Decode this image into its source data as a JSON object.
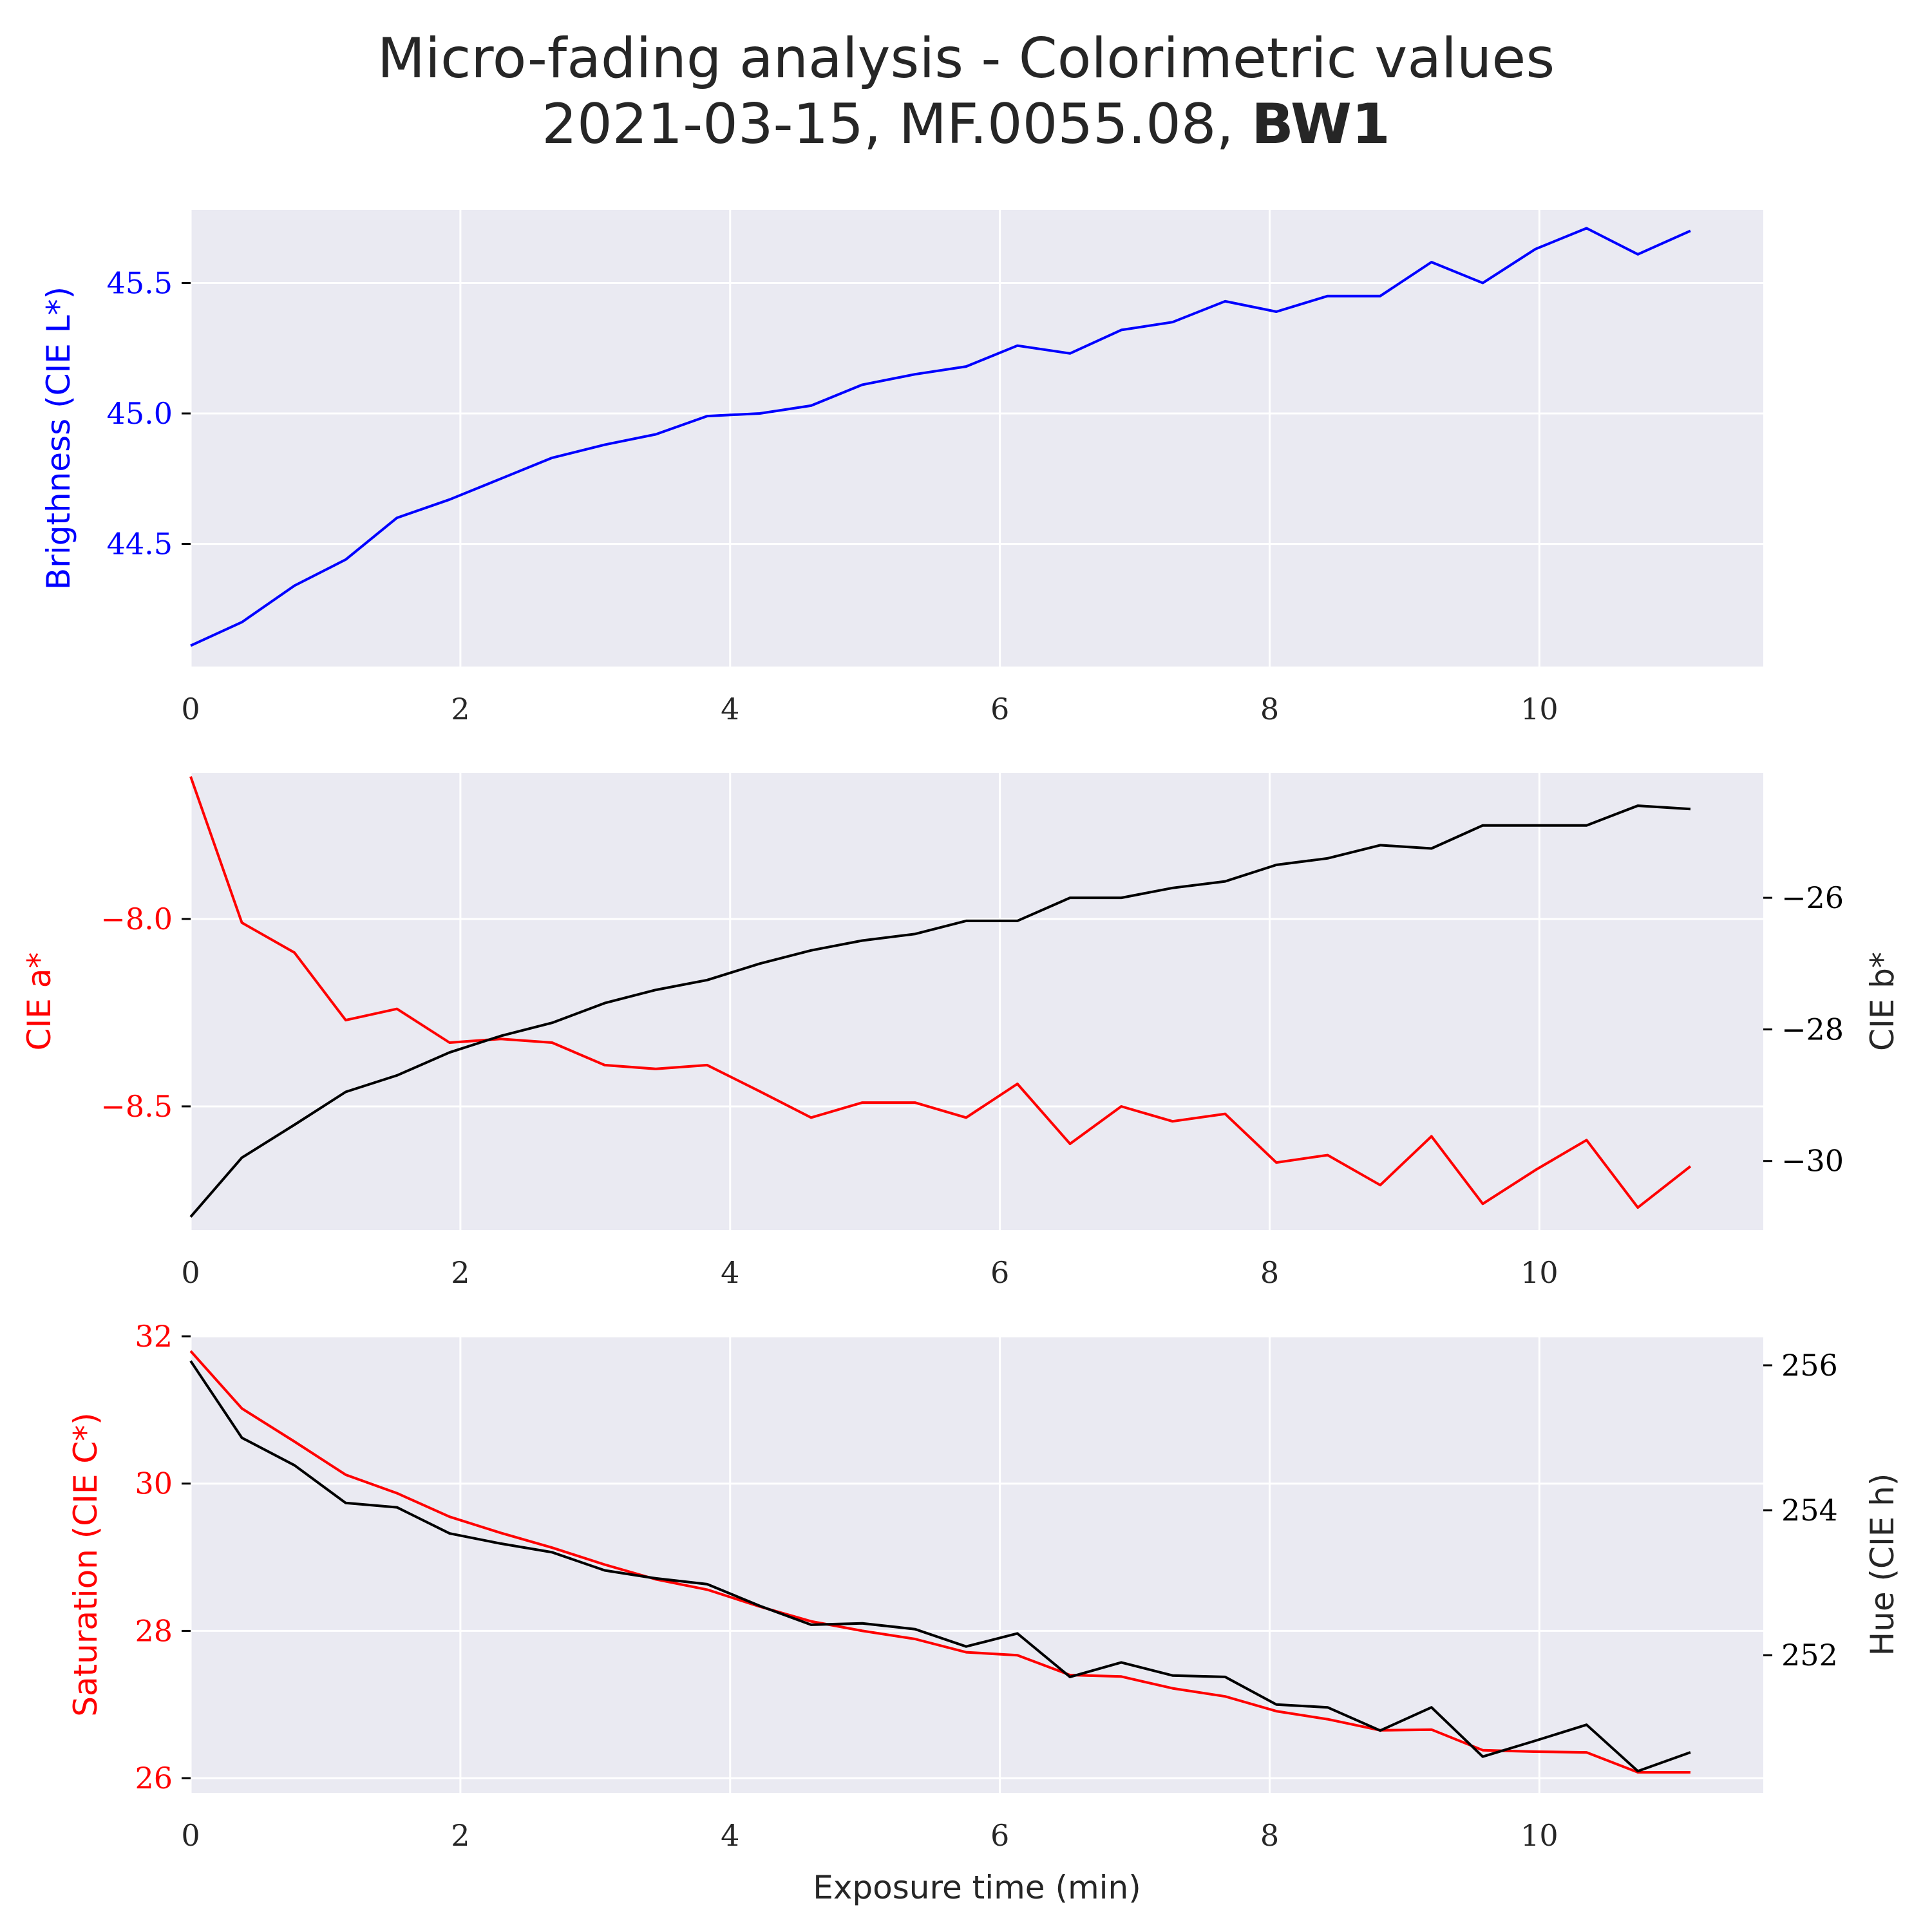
{
  "title_line1": "Micro-fading analysis - Colorimetric values",
  "title_line2_prefix": "2021-03-15, MF.0055.08, ",
  "title_line2_bold": "BW1",
  "colors": {
    "plot_bg": "#eaeaf2",
    "grid": "#ffffff",
    "blue": "#0000ff",
    "red": "#ff0000",
    "black": "#000000",
    "text": "#262626"
  },
  "chart_data": [
    {
      "type": "line",
      "ylabel": "Brigthness (CIE L*)",
      "ylabel_color": "#0000ff",
      "xlim": [
        0,
        11.66
      ],
      "xticks": [
        0,
        2,
        4,
        6,
        8,
        10
      ],
      "ylim": [
        44.03,
        45.78
      ],
      "yticks": [
        44.5,
        45.0,
        45.5
      ],
      "ytick_labels": [
        "44.5",
        "45.0",
        "45.5"
      ],
      "x": [
        0,
        0.38,
        0.77,
        1.15,
        1.53,
        1.92,
        2.3,
        2.68,
        3.07,
        3.45,
        3.83,
        4.22,
        4.6,
        4.98,
        5.37,
        5.75,
        6.13,
        6.52,
        6.9,
        7.28,
        7.67,
        8.05,
        8.43,
        8.82,
        9.2,
        9.58,
        9.97,
        10.35,
        10.73,
        11.12
      ],
      "series": [
        {
          "values": [
            44.11,
            44.2,
            44.34,
            44.44,
            44.6,
            44.67,
            44.75,
            44.83,
            44.88,
            44.92,
            44.99,
            45.0,
            45.03,
            45.11,
            45.15,
            45.18,
            45.26,
            45.23,
            45.32,
            45.35,
            45.43,
            45.39,
            45.45,
            45.45,
            45.58,
            45.5,
            45.63,
            45.71,
            45.61,
            45.7
          ],
          "color": "#0000ff",
          "axis": "left"
        }
      ]
    },
    {
      "type": "line",
      "ylabel": "CIE a*",
      "ylabel_color": "#ff0000",
      "ylabel_right": "CIE b*",
      "xlim": [
        0,
        11.66
      ],
      "xticks": [
        0,
        2,
        4,
        6,
        8,
        10
      ],
      "ylim": [
        -8.83,
        -7.61
      ],
      "yticks": [
        -8.5,
        -8.0
      ],
      "ytick_labels": [
        "−8.5",
        "−8.0"
      ],
      "ylim_right": [
        -31.05,
        -24.1
      ],
      "yticks_right": [
        -30,
        -28,
        -26
      ],
      "ytick_labels_right": [
        "−30",
        "−28",
        "−26"
      ],
      "x": [
        0,
        0.38,
        0.77,
        1.15,
        1.53,
        1.92,
        2.3,
        2.68,
        3.07,
        3.45,
        3.83,
        4.22,
        4.6,
        4.98,
        5.37,
        5.75,
        6.13,
        6.52,
        6.9,
        7.28,
        7.67,
        8.05,
        8.43,
        8.82,
        9.2,
        9.58,
        9.97,
        10.35,
        10.73,
        11.12
      ],
      "series": [
        {
          "values": [
            -7.62,
            -8.01,
            -8.09,
            -8.27,
            -8.24,
            -8.33,
            -8.32,
            -8.33,
            -8.39,
            -8.4,
            -8.39,
            -8.46,
            -8.53,
            -8.49,
            -8.49,
            -8.53,
            -8.44,
            -8.6,
            -8.5,
            -8.54,
            -8.52,
            -8.65,
            -8.63,
            -8.71,
            -8.58,
            -8.76,
            -8.67,
            -8.59,
            -8.77,
            -8.66
          ],
          "color": "#ff0000",
          "axis": "left"
        },
        {
          "values": [
            -30.85,
            -29.95,
            -29.45,
            -28.95,
            -28.7,
            -28.35,
            -28.1,
            -27.9,
            -27.6,
            -27.4,
            -27.25,
            -27.0,
            -26.8,
            -26.65,
            -26.55,
            -26.35,
            -26.35,
            -26.0,
            -26.0,
            -25.85,
            -25.75,
            -25.5,
            -25.4,
            -25.2,
            -25.25,
            -24.9,
            -24.9,
            -24.9,
            -24.6,
            -24.65
          ],
          "color": "#000000",
          "axis": "right"
        }
      ]
    },
    {
      "type": "line",
      "ylabel": "Saturation (CIE C*)",
      "ylabel_color": "#ff0000",
      "ylabel_right": "Hue (CIE h)",
      "xlabel": "Exposure time (min)",
      "xlim": [
        0,
        11.66
      ],
      "xticks": [
        0,
        2,
        4,
        6,
        8,
        10
      ],
      "ylim": [
        25.8,
        32.0
      ],
      "yticks": [
        26,
        28,
        30,
        32
      ],
      "ytick_labels": [
        "26",
        "28",
        "30",
        "32"
      ],
      "ylim_right": [
        250.1,
        256.4
      ],
      "yticks_right": [
        252,
        254,
        256
      ],
      "ytick_labels_right": [
        "252",
        "254",
        "256"
      ],
      "x": [
        0,
        0.38,
        0.77,
        1.15,
        1.53,
        1.92,
        2.3,
        2.68,
        3.07,
        3.45,
        3.83,
        4.22,
        4.6,
        4.98,
        5.37,
        5.75,
        6.13,
        6.52,
        6.9,
        7.28,
        7.67,
        8.05,
        8.43,
        8.82,
        9.2,
        9.58,
        9.97,
        10.35,
        10.73,
        11.12
      ],
      "series": [
        {
          "values": [
            31.8,
            31.02,
            30.57,
            30.12,
            29.87,
            29.55,
            29.33,
            29.13,
            28.9,
            28.7,
            28.56,
            28.33,
            28.13,
            28.0,
            27.89,
            27.71,
            27.67,
            27.4,
            27.38,
            27.22,
            27.11,
            26.91,
            26.8,
            26.65,
            26.66,
            26.38,
            26.36,
            26.35,
            26.08,
            26.08
          ],
          "color": "#ff0000",
          "axis": "left"
        },
        {
          "values": [
            256.06,
            255.0,
            254.62,
            254.1,
            254.04,
            253.68,
            253.54,
            253.42,
            253.17,
            253.06,
            252.98,
            252.68,
            252.42,
            252.44,
            252.36,
            252.12,
            252.3,
            251.7,
            251.9,
            251.72,
            251.7,
            251.32,
            251.28,
            250.96,
            251.28,
            250.6,
            250.82,
            251.04,
            250.4,
            250.66
          ],
          "color": "#000000",
          "axis": "right"
        }
      ]
    }
  ]
}
